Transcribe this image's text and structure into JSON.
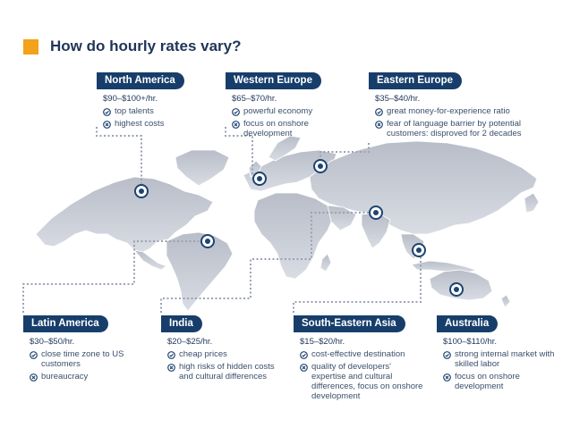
{
  "header": {
    "title": "How do hourly rates vary?",
    "accent_color": "#f2a21b"
  },
  "colors": {
    "pill": "#173e6b",
    "land": "#c9cdd6",
    "marker": "#1e4470",
    "dots": "#9aa3b2"
  },
  "regions": [
    {
      "key": "north_america",
      "name": "North America",
      "rate": "$90–$100+/hr.",
      "points": [
        {
          "icon": "check-circle",
          "text": "top talents"
        },
        {
          "icon": "x-circle",
          "text": "highest costs"
        }
      ]
    },
    {
      "key": "western_europe",
      "name": "Western Europe",
      "rate": "$65–$70/hr.",
      "points": [
        {
          "icon": "check-circle",
          "text": "powerful economy"
        },
        {
          "icon": "x-circle",
          "text": "focus on onshore development"
        }
      ]
    },
    {
      "key": "eastern_europe",
      "name": "Eastern Europe",
      "rate": "$35–$40/hr.",
      "points": [
        {
          "icon": "check-circle",
          "text": "great money-for-experience ratio"
        },
        {
          "icon": "x-circle",
          "text": "fear of language barrier by potential customers: disproved for 2 decades"
        }
      ]
    },
    {
      "key": "latin_america",
      "name": "Latin America",
      "rate": "$30–$50/hr.",
      "points": [
        {
          "icon": "check-circle",
          "text": "close time zone to US customers"
        },
        {
          "icon": "x-circle",
          "text": "bureaucracy"
        }
      ]
    },
    {
      "key": "india",
      "name": "India",
      "rate": "$20–$25/hr.",
      "points": [
        {
          "icon": "check-circle",
          "text": "cheap prices"
        },
        {
          "icon": "x-circle",
          "text": "high risks of hidden costs and cultural differences"
        }
      ]
    },
    {
      "key": "south_eastern_asia",
      "name": "South-Eastern Asia",
      "rate": "$15–$20/hr.",
      "points": [
        {
          "icon": "check-circle",
          "text": "cost-effective destination"
        },
        {
          "icon": "x-circle",
          "text": "quality of developers' expertise and cultural differences, focus on onshore development"
        }
      ]
    },
    {
      "key": "australia",
      "name": "Australia",
      "rate": "$100–$110/hr.",
      "points": [
        {
          "icon": "check-circle",
          "text": "strong internal market with skilled labor"
        },
        {
          "icon": "x-circle",
          "text": "focus on onshore development"
        }
      ]
    }
  ]
}
